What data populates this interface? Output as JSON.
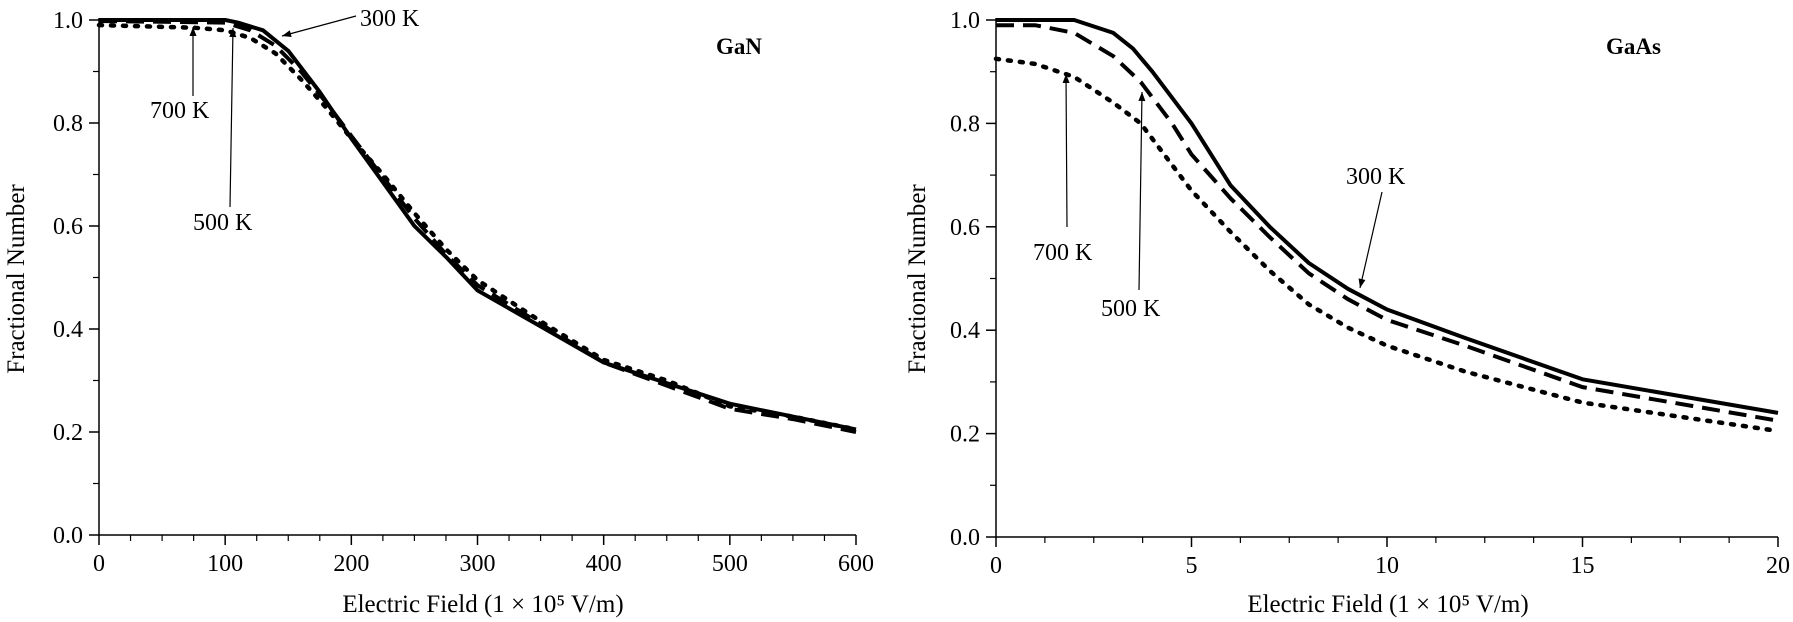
{
  "chart_data": [
    {
      "type": "line",
      "title": "GaN",
      "xlabel": "Electric Field (1 × 10⁵ V/m)",
      "ylabel": "Fractional Number",
      "xlim": [
        0,
        600
      ],
      "ylim": [
        0,
        1.0
      ],
      "xticks": [
        "0",
        "100",
        "200",
        "300",
        "400",
        "500",
        "600"
      ],
      "yticks": [
        "0.0",
        "0.2",
        "0.4",
        "0.6",
        "0.8",
        "1.0"
      ],
      "grid": false,
      "series": [
        {
          "name": "300 K",
          "style": "solid",
          "x": [
            0,
            100,
            110,
            130,
            150,
            175,
            200,
            225,
            250,
            275,
            300,
            350,
            400,
            450,
            500,
            550,
            600
          ],
          "y": [
            1.0,
            1.0,
            0.995,
            0.98,
            0.94,
            0.86,
            0.77,
            0.685,
            0.6,
            0.54,
            0.475,
            0.405,
            0.335,
            0.295,
            0.255,
            0.23,
            0.205
          ]
        },
        {
          "name": "500 K",
          "style": "dashed",
          "x": [
            0,
            100,
            120,
            140,
            160,
            180,
            200,
            225,
            250,
            275,
            300,
            350,
            400,
            450,
            500,
            550,
            600
          ],
          "y": [
            0.998,
            0.995,
            0.98,
            0.95,
            0.9,
            0.84,
            0.775,
            0.695,
            0.615,
            0.545,
            0.485,
            0.41,
            0.335,
            0.29,
            0.245,
            0.225,
            0.2
          ]
        },
        {
          "name": "700 K",
          "style": "dotted",
          "x": [
            0,
            75,
            100,
            120,
            140,
            160,
            180,
            200,
            225,
            250,
            275,
            300,
            350,
            400,
            450,
            500,
            550,
            600
          ],
          "y": [
            0.99,
            0.985,
            0.98,
            0.965,
            0.935,
            0.885,
            0.83,
            0.77,
            0.7,
            0.625,
            0.555,
            0.495,
            0.415,
            0.34,
            0.3,
            0.25,
            0.23,
            0.205
          ]
        }
      ],
      "annotations": [
        {
          "text": "300 K",
          "x": 145,
          "y": 0.95
        },
        {
          "text": "700 K",
          "x": 75,
          "y": 0.985
        },
        {
          "text": "500 K",
          "x": 105,
          "y": 0.98
        }
      ]
    },
    {
      "type": "line",
      "title": "GaAs",
      "xlabel": "Electric Field (1 × 10⁵ V/m)",
      "ylabel": "Fractional Number",
      "xlim": [
        0,
        20
      ],
      "ylim": [
        0,
        1.0
      ],
      "xticks": [
        "0",
        "5",
        "10",
        "15",
        "20"
      ],
      "yticks": [
        "0.0",
        "0.2",
        "0.4",
        "0.6",
        "0.8",
        "1.0"
      ],
      "grid": false,
      "series": [
        {
          "name": "300 K",
          "style": "solid",
          "x": [
            0,
            2,
            3,
            3.5,
            4,
            5,
            6,
            7,
            8,
            9,
            10,
            12,
            15,
            20
          ],
          "y": [
            1.0,
            1.0,
            0.975,
            0.945,
            0.9,
            0.8,
            0.68,
            0.6,
            0.53,
            0.48,
            0.44,
            0.385,
            0.305,
            0.24
          ]
        },
        {
          "name": "500 K",
          "style": "dashed",
          "x": [
            0,
            1,
            2,
            3,
            3.7,
            4.5,
            5,
            6,
            7,
            8,
            9,
            10,
            12,
            15,
            20
          ],
          "y": [
            0.99,
            0.99,
            0.975,
            0.93,
            0.88,
            0.8,
            0.74,
            0.655,
            0.58,
            0.51,
            0.46,
            0.42,
            0.37,
            0.29,
            0.225
          ]
        },
        {
          "name": "700 K",
          "style": "dotted",
          "x": [
            0,
            1,
            2,
            3,
            3.7,
            5,
            6,
            7,
            8,
            9,
            10,
            12,
            15,
            20
          ],
          "y": [
            0.925,
            0.915,
            0.89,
            0.84,
            0.8,
            0.67,
            0.59,
            0.515,
            0.45,
            0.405,
            0.37,
            0.32,
            0.26,
            0.205
          ]
        }
      ],
      "annotations": [
        {
          "text": "300 K",
          "x": 9.1,
          "y": 0.475
        },
        {
          "text": "700 K",
          "x": 1.8,
          "y": 0.895
        },
        {
          "text": "500 K",
          "x": 3.7,
          "y": 0.875
        }
      ]
    }
  ]
}
